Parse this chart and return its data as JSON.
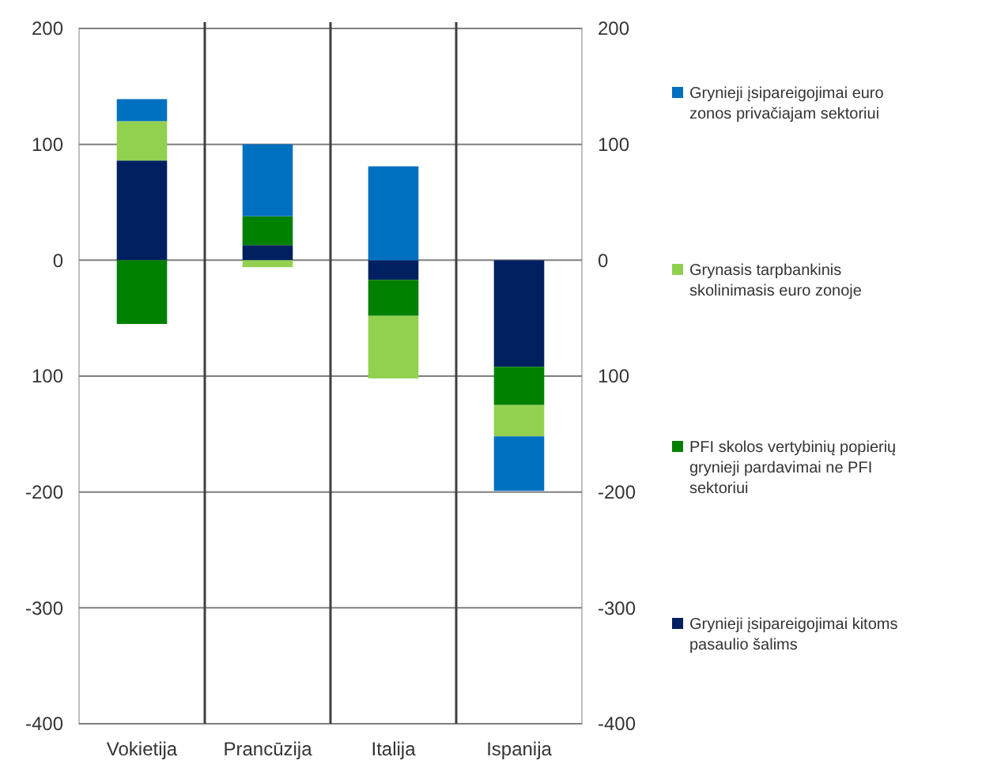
{
  "chart_data": {
    "type": "bar",
    "stacked": true,
    "categories": [
      "Vokietija",
      "Prancūzija",
      "Italija",
      "Ispanija"
    ],
    "series": [
      {
        "name": "Grynieji įsipareigojimai kitoms pasaulio šalims",
        "color": "#002060",
        "values": [
          86,
          13,
          -17,
          -92
        ]
      },
      {
        "name": "PFI skolos vertybinių popierių grynieji pardavimai ne PFI sektoriui",
        "color": "#008000",
        "values": [
          -55,
          25,
          -31,
          -33
        ]
      },
      {
        "name": "Grynasis tarpbankinis skolinimasis euro zonoje",
        "color": "#92d050",
        "values": [
          34,
          -6,
          -54,
          -27
        ]
      },
      {
        "name": "Grynieji įsipareigojimai euro zonos privačiajam sektoriui",
        "color": "#0070c0",
        "values": [
          19,
          62,
          81,
          -47
        ]
      }
    ],
    "ylim": [
      -400,
      200
    ],
    "yticks": [
      200,
      100,
      0,
      {
        "value": -100,
        "label": "100"
      },
      -200,
      -300,
      -400
    ],
    "y2lim": [
      -400,
      200
    ],
    "y2ticks": [
      200,
      100,
      0,
      {
        "value": -100,
        "label": "100"
      },
      -200,
      -300,
      -400
    ],
    "grid": "y",
    "legend": "right"
  }
}
